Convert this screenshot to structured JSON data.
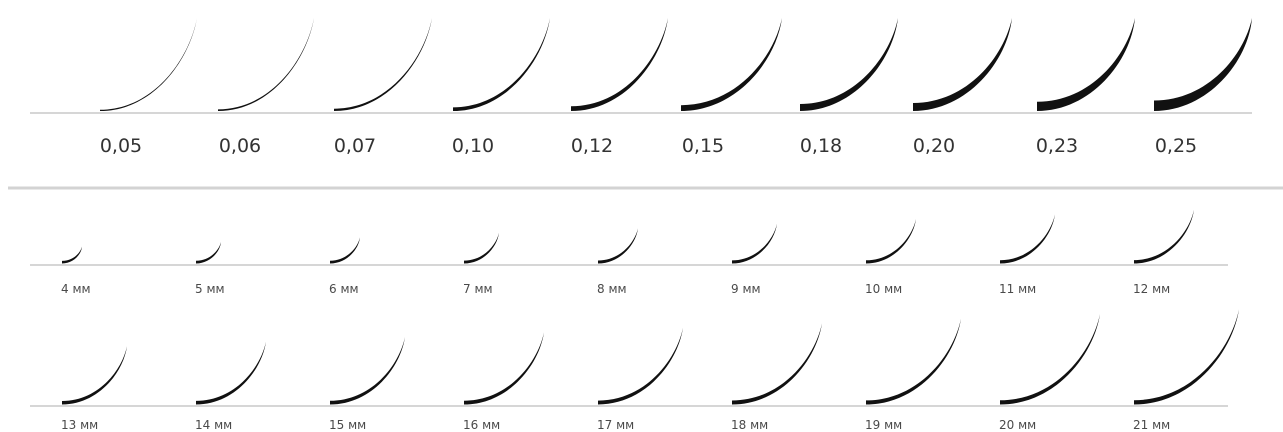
{
  "thickness_row": {
    "labels": [
      "0,05",
      "0,06",
      "0,07",
      "0,10",
      "0,12",
      "0,15",
      "0,18",
      "0,20",
      "0,23",
      "0,25"
    ]
  },
  "length_row_1": {
    "labels": [
      "4 мм",
      "5 мм",
      "6 мм",
      "7 мм",
      "8 мм",
      "9 мм",
      "10 мм",
      "11 мм",
      "12 мм"
    ]
  },
  "length_row_2": {
    "labels": [
      "13 мм",
      "14 мм",
      "15 мм",
      "16 мм",
      "17 мм",
      "18 мм",
      "19 мм",
      "20 мм",
      "21 мм"
    ]
  },
  "colors": {
    "lash": "#111111",
    "baseline": "#bdbdbd",
    "divider": "#d3d3d3",
    "label": "#333333",
    "small_label": "#4a4a4a"
  }
}
